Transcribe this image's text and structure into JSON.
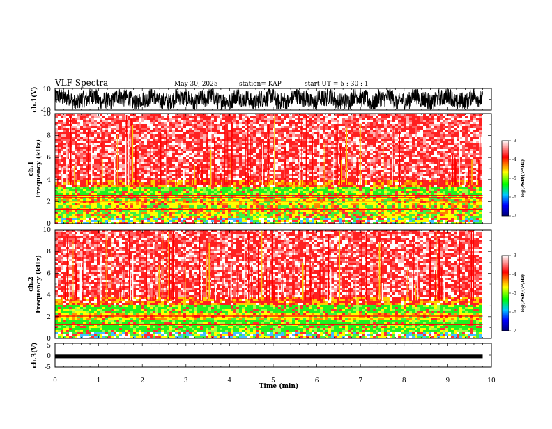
{
  "header": {
    "title": "VLF Spectra",
    "date": "May 30, 2025",
    "station": "station= KAP",
    "start_ut": "start  UT  =   5  : 30 : 1"
  },
  "chart_data": [
    {
      "type": "line",
      "name": "ch.1 waveform",
      "ylabel": "ch.1(V)",
      "ylim": [
        -10,
        10
      ],
      "yticks": [
        "10",
        "-10"
      ]
    },
    {
      "type": "heatmap",
      "name": "ch.1 spectrogram",
      "ylabel_channel": "ch.1",
      "ylabel": "Frequency  (kHz)",
      "ylim": [
        0,
        10
      ],
      "yticks": [
        "0",
        "2",
        "4",
        "6",
        "8",
        "10"
      ],
      "data_extent_min": 9.8,
      "bands_khz": [
        {
          "from": 0.0,
          "to": 0.6,
          "level": "mixed"
        },
        {
          "from": 0.6,
          "to": 1.6,
          "level": "green-yellow"
        },
        {
          "from": 1.6,
          "to": 2.0,
          "level": "yellow"
        },
        {
          "from": 2.0,
          "to": 2.6,
          "level": "green-yellow"
        },
        {
          "from": 2.6,
          "to": 3.4,
          "level": "green"
        },
        {
          "from": 3.4,
          "to": 4.0,
          "level": "yellow-red"
        },
        {
          "from": 4.0,
          "to": 10.0,
          "level": "red-white"
        }
      ],
      "lines_khz": [
        2.05,
        2.35,
        2.55,
        1.3
      ]
    },
    {
      "type": "heatmap",
      "name": "ch.2 spectrogram",
      "ylabel_channel": "ch.2",
      "ylabel": "Frequency  (kHz)",
      "ylim": [
        0,
        10
      ],
      "yticks": [
        "0",
        "2",
        "4",
        "6",
        "8",
        "10"
      ],
      "data_extent_min": 9.8,
      "bands_khz": [
        {
          "from": 0.0,
          "to": 0.5,
          "level": "mixed"
        },
        {
          "from": 0.5,
          "to": 1.8,
          "level": "green"
        },
        {
          "from": 1.8,
          "to": 2.3,
          "level": "yellow"
        },
        {
          "from": 2.3,
          "to": 3.0,
          "level": "green"
        },
        {
          "from": 3.0,
          "to": 3.8,
          "level": "yellow-red"
        },
        {
          "from": 3.8,
          "to": 10.0,
          "level": "red-white"
        }
      ],
      "lines_khz": [
        2.05,
        1.3
      ]
    },
    {
      "type": "line",
      "name": "ch.3 waveform",
      "ylabel": "ch.3(V)",
      "ylim": [
        -5,
        5
      ],
      "yticks": [
        "5",
        "0",
        "-5"
      ],
      "level_v": [
        -1.3,
        0.2
      ]
    }
  ],
  "xaxis": {
    "label": "Time  (min)",
    "xlim": [
      0,
      10
    ],
    "ticks": [
      "0",
      "1",
      "2",
      "3",
      "4",
      "5",
      "6",
      "7",
      "8",
      "9",
      "10"
    ]
  },
  "colorbar": {
    "label": "log(PSD)(V²/Hz)",
    "range": [
      -7,
      -3
    ],
    "ticks": [
      "-3",
      "-4",
      "-5",
      "-6",
      "-7"
    ],
    "colors": [
      "#ffffff",
      "#ff0000",
      "#ffff00",
      "#00ff00",
      "#00c8ff",
      "#0000ff",
      "#00007a"
    ]
  }
}
